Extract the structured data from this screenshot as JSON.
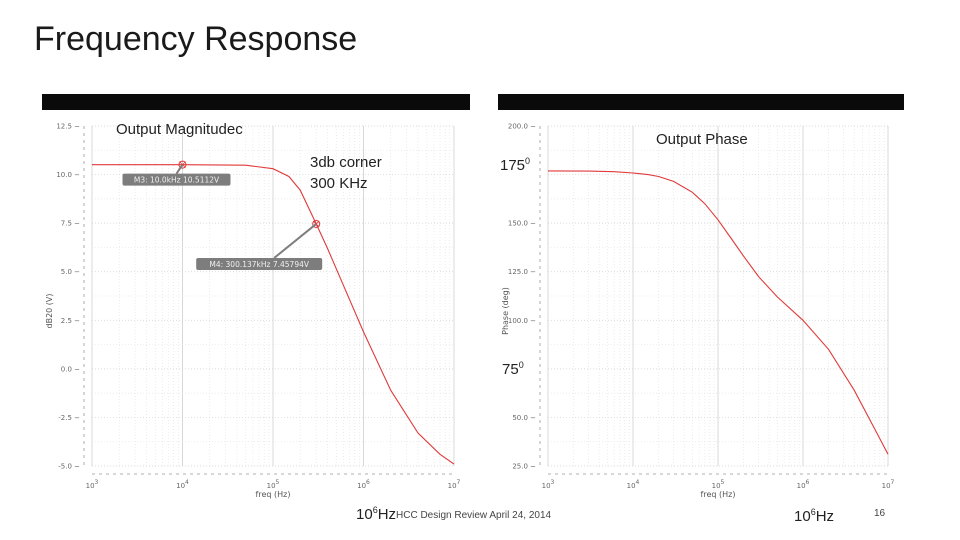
{
  "slide": {
    "title": "Frequency Response",
    "footer": "HCC Design Review  April 24, 2014",
    "page_number": "16"
  },
  "annotations": {
    "left_title": "Output Magnitudec",
    "right_title": "Output Phase",
    "corner_line1": "3db corner",
    "corner_line2": "300 KHz",
    "phase_high": "175",
    "phase_high_sup": "0",
    "phase_low": "75",
    "phase_low_sup": "0",
    "bottom_left_freq_base": "10",
    "bottom_left_freq_exp": "6",
    "bottom_left_freq_unit": "Hz",
    "bottom_right_freq_base": "10",
    "bottom_right_freq_exp": "6",
    "bottom_right_freq_unit": "Hz"
  },
  "colors": {
    "curve": "#e03a3a",
    "marker_box": "#7d7d7d",
    "grid": "#d0d0d0"
  },
  "chart_data": [
    {
      "type": "line",
      "title": "",
      "xlabel": "freq (Hz)",
      "ylabel": "dB20 (V)",
      "x_scale": "log",
      "xlim": [
        1000,
        10000000
      ],
      "ylim": [
        -5.0,
        12.5
      ],
      "grid": true,
      "x_ticks": [
        {
          "value": 1000,
          "base": "10",
          "exp": "3"
        },
        {
          "value": 10000,
          "base": "10",
          "exp": "4"
        },
        {
          "value": 100000,
          "base": "10",
          "exp": "5"
        },
        {
          "value": 1000000,
          "base": "10",
          "exp": "6"
        },
        {
          "value": 10000000,
          "base": "10",
          "exp": "7"
        }
      ],
      "y_ticks": [
        {
          "value": 12.5,
          "label": "12.5"
        },
        {
          "value": 10.0,
          "label": "10.0"
        },
        {
          "value": 7.5,
          "label": "7.5"
        },
        {
          "value": 5.0,
          "label": "5.0"
        },
        {
          "value": 2.5,
          "label": "2.5"
        },
        {
          "value": 0.0,
          "label": "0.0"
        },
        {
          "value": -2.5,
          "label": "-2.5"
        },
        {
          "value": -5.0,
          "label": "-5.0"
        }
      ],
      "series": [
        {
          "x": [
            1000,
            10000,
            50000,
            100000,
            150000,
            200000,
            300137,
            400000,
            600000,
            1000000,
            2000000,
            4000000,
            7000000,
            10000000
          ],
          "y": [
            10.51,
            10.51,
            10.48,
            10.3,
            9.9,
            9.2,
            7.46,
            6.2,
            4.3,
            1.9,
            -1.1,
            -3.3,
            -4.4,
            -4.9
          ]
        }
      ],
      "markers": [
        {
          "label": "M3: 10.0kHz 10.5112V",
          "x": 10000,
          "y": 10.5112
        },
        {
          "label": "M4: 300.137kHz 7.45794V",
          "x": 300137,
          "y": 7.45794
        }
      ]
    },
    {
      "type": "line",
      "title": "",
      "xlabel": "freq (Hz)",
      "ylabel": "Phase (deg)",
      "x_scale": "log",
      "xlim": [
        1000,
        10000000
      ],
      "ylim": [
        25.0,
        200.0
      ],
      "grid": true,
      "x_ticks": [
        {
          "value": 1000,
          "base": "10",
          "exp": "3"
        },
        {
          "value": 10000,
          "base": "10",
          "exp": "4"
        },
        {
          "value": 100000,
          "base": "10",
          "exp": "5"
        },
        {
          "value": 1000000,
          "base": "10",
          "exp": "6"
        },
        {
          "value": 10000000,
          "base": "10",
          "exp": "7"
        }
      ],
      "y_ticks": [
        {
          "value": 200.0,
          "label": "200.0"
        },
        {
          "value": 175.0,
          "label": ""
        },
        {
          "value": 150.0,
          "label": "150.0"
        },
        {
          "value": 125.0,
          "label": "125.0"
        },
        {
          "value": 100.0,
          "label": "100.0"
        },
        {
          "value": 75.0,
          "label": ""
        },
        {
          "value": 50.0,
          "label": "50.0"
        },
        {
          "value": 25.0,
          "label": "25.0"
        }
      ],
      "series": [
        {
          "x": [
            1000,
            3000,
            6000,
            10000,
            15000,
            20000,
            30000,
            50000,
            70000,
            100000,
            150000,
            200000,
            300000,
            500000,
            1000000,
            2000000,
            4000000,
            7000000,
            10000000
          ],
          "y": [
            176.9,
            176.8,
            176.5,
            175.8,
            175.0,
            174.0,
            171.5,
            165.9,
            160.0,
            151.7,
            140.8,
            133.0,
            122.5,
            112.0,
            100.0,
            85.0,
            64.0,
            44.0,
            31.0
          ]
        }
      ]
    }
  ]
}
